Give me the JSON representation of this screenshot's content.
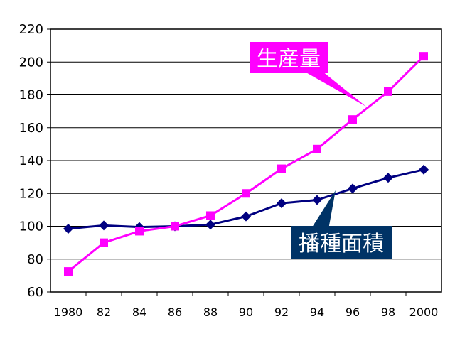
{
  "chart_data": {
    "type": "line",
    "title": "",
    "xlabel": "",
    "ylabel": "",
    "categories": [
      "1980",
      "82",
      "84",
      "86",
      "88",
      "90",
      "92",
      "94",
      "96",
      "98",
      "2000"
    ],
    "ylim": [
      60,
      220
    ],
    "yticks": [
      60,
      80,
      100,
      120,
      140,
      160,
      180,
      200,
      220
    ],
    "grid": "horizontal",
    "series": [
      {
        "name": "生産量",
        "color": "#ff00ff",
        "marker": "square",
        "values": [
          72.5,
          90,
          97,
          100,
          106.5,
          120,
          135,
          147,
          165,
          182,
          203.5
        ]
      },
      {
        "name": "播種面積",
        "color": "#000080",
        "marker": "diamond",
        "values": [
          98.5,
          100.5,
          99.5,
          100,
          101,
          106,
          114,
          116,
          123,
          129.5,
          134.5
        ]
      }
    ]
  },
  "callouts": {
    "production": {
      "text": "生産量",
      "bg": "#ff00ff",
      "fg": "#ffffff"
    },
    "area": {
      "text": "播種面積",
      "bg": "#003366",
      "fg": "#ffffff"
    }
  }
}
